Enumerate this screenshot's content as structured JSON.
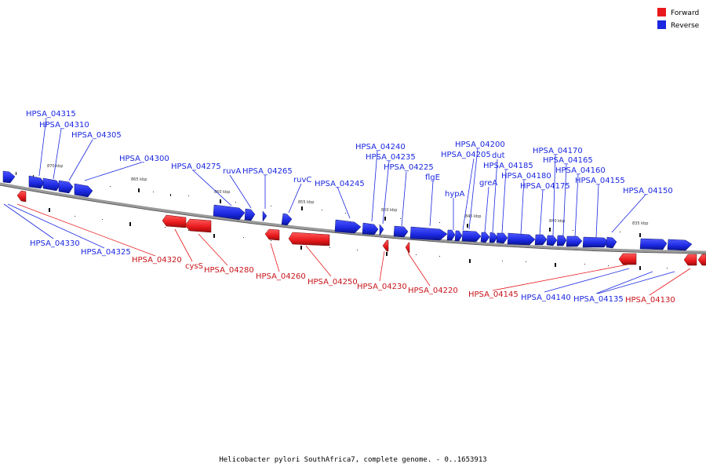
{
  "caption": "Helicobacter pylori SouthAfrica7, complete genome. - 0..1653913",
  "colors": {
    "forward": "#e8191c",
    "reverse": "#1b28e0",
    "backbone": "#777777"
  },
  "legend": [
    {
      "label": "Forward",
      "color": "#e8191c"
    },
    {
      "label": "Reverse",
      "color": "#1b28e0"
    }
  ],
  "ticks": [
    "870 kbp",
    "865 kbp",
    "860 kbp",
    "855 kbp",
    "850 kbp",
    "845 kbp",
    "840 kbp",
    "835 kbp"
  ],
  "reverse_labels": [
    "HPSA_04315",
    "HPSA_04310",
    "HPSA_04305",
    "HPSA_04300",
    "HPSA_04275",
    "ruvA",
    "HPSA_04265",
    "ruvC",
    "HPSA_04245",
    "HPSA_04240",
    "HPSA_04235",
    "HPSA_04225",
    "flgE",
    "hypA",
    "HPSA_04200",
    "HPSA_04205",
    "greA",
    "dut",
    "HPSA_04185",
    "HPSA_04180",
    "HPSA_04175",
    "HPSA_04170",
    "HPSA_04165",
    "HPSA_04160",
    "HPSA_04155",
    "HPSA_04150",
    "HPSA_04330",
    "HPSA_04325",
    "HPSA_04140",
    "HPSA_04135"
  ],
  "forward_labels": [
    "HPSA_04320",
    "cysS",
    "HPSA_04280",
    "HPSA_04260",
    "HPSA_04250",
    "HPSA_04230",
    "HPSA_04220",
    "HPSA_04145",
    "HPSA_04130"
  ]
}
